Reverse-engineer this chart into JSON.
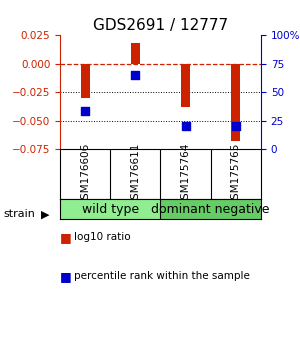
{
  "title": "GDS2691 / 12777",
  "samples": [
    "GSM176606",
    "GSM176611",
    "GSM175764",
    "GSM175765"
  ],
  "log10_ratio": [
    -0.03,
    0.018,
    -0.038,
    -0.068
  ],
  "percentile_rank": [
    33,
    65,
    20,
    20
  ],
  "ylim_left": [
    -0.075,
    0.025
  ],
  "ylim_right": [
    0,
    100
  ],
  "yticks_left": [
    -0.075,
    -0.05,
    -0.025,
    0,
    0.025
  ],
  "yticks_right": [
    0,
    25,
    50,
    75,
    100
  ],
  "hline_zero": 0,
  "hlines_dotted": [
    -0.025,
    -0.05
  ],
  "groups": [
    {
      "label": "wild type",
      "samples": [
        0,
        1
      ],
      "color": "#90ee90"
    },
    {
      "label": "dominant negative",
      "samples": [
        2,
        3
      ],
      "color": "#66cc66"
    }
  ],
  "bar_color": "#cc2200",
  "dot_color": "#0000cc",
  "bar_width": 0.18,
  "dot_size": 40,
  "label_color_left": "#cc2200",
  "label_color_right": "#0000cc",
  "sample_box_color": "#cccccc",
  "legend_bar_label": "log10 ratio",
  "legend_dot_label": "percentile rank within the sample",
  "strain_label": "strain",
  "group_label_fontsize": 9,
  "sample_label_fontsize": 7.5,
  "title_fontsize": 11
}
